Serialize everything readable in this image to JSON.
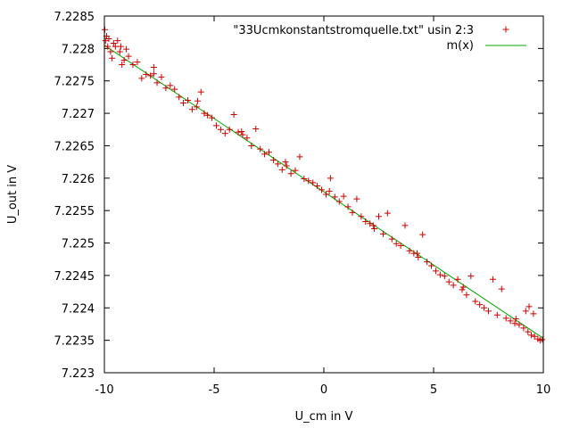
{
  "chart_data": {
    "type": "scatter",
    "xlabel": "U_cm in V",
    "ylabel": "U_out in V",
    "xlim": [
      -10,
      10
    ],
    "ylim": [
      7.223,
      7.2285
    ],
    "x_ticks": [
      -10,
      -5,
      0,
      5,
      10
    ],
    "x_tick_labels": [
      "-10",
      "-5",
      "0",
      "5",
      "10"
    ],
    "y_ticks": [
      7.223,
      7.2235,
      7.224,
      7.2245,
      7.225,
      7.2255,
      7.226,
      7.2265,
      7.227,
      7.2275,
      7.228,
      7.2285
    ],
    "y_tick_labels": [
      "7.223",
      "7.2235",
      "7.224",
      "7.2245",
      "7.225",
      "7.2255",
      "7.226",
      "7.2265",
      "7.227",
      "7.2275",
      "7.228",
      "7.2285"
    ],
    "grid": false,
    "legend_position": "top-right",
    "series": [
      {
        "name": "\"33Ucmkonstantstromquelle.txt\" usin 2:3",
        "kind": "points",
        "marker": "plus",
        "color": "#cc0000",
        "points": [
          [
            -9.98,
            7.22829
          ],
          [
            -9.95,
            7.22812
          ],
          [
            -9.9,
            7.22819
          ],
          [
            -9.85,
            7.22803
          ],
          [
            -9.8,
            7.22815
          ],
          [
            -9.72,
            7.22795
          ],
          [
            -9.65,
            7.22785
          ],
          [
            -9.58,
            7.22808
          ],
          [
            -9.5,
            7.22803
          ],
          [
            -9.4,
            7.22812
          ],
          [
            -9.3,
            7.22795
          ],
          [
            -9.2,
            7.22775
          ],
          [
            -9.1,
            7.22782
          ],
          [
            -9.0,
            7.22799
          ],
          [
            -8.9,
            7.22788
          ],
          [
            -8.7,
            7.22775
          ],
          [
            -8.5,
            7.22779
          ],
          [
            -8.3,
            7.22754
          ],
          [
            -8.1,
            7.2276
          ],
          [
            -7.9,
            7.22758
          ],
          [
            -7.75,
            7.22771
          ],
          [
            -7.6,
            7.22747
          ],
          [
            -7.4,
            7.22756
          ],
          [
            -7.2,
            7.22739
          ],
          [
            -7.0,
            7.22743
          ],
          [
            -6.8,
            7.22737
          ],
          [
            -6.6,
            7.22725
          ],
          [
            -6.4,
            7.22716
          ],
          [
            -6.2,
            7.2272
          ],
          [
            -6.0,
            7.22706
          ],
          [
            -5.8,
            7.2271
          ],
          [
            -5.6,
            7.22733
          ],
          [
            -5.45,
            7.227
          ],
          [
            -5.3,
            7.22697
          ],
          [
            -5.1,
            7.22693
          ],
          [
            -4.9,
            7.22681
          ],
          [
            -4.7,
            7.22675
          ],
          [
            -4.5,
            7.22669
          ],
          [
            -4.3,
            7.22675
          ],
          [
            -4.1,
            7.22698
          ],
          [
            -3.9,
            7.22671
          ],
          [
            -3.7,
            7.22667
          ],
          [
            -3.5,
            7.22662
          ],
          [
            -3.3,
            7.2265
          ],
          [
            -3.1,
            7.22676
          ],
          [
            -2.9,
            7.22645
          ],
          [
            -2.7,
            7.22637
          ],
          [
            -2.5,
            7.2264
          ],
          [
            -2.3,
            7.22628
          ],
          [
            -2.1,
            7.22622
          ],
          [
            -1.9,
            7.22613
          ],
          [
            -1.7,
            7.22619
          ],
          [
            -1.5,
            7.22607
          ],
          [
            -1.3,
            7.22612
          ],
          [
            -1.1,
            7.22633
          ],
          [
            -0.9,
            7.22599
          ],
          [
            -0.7,
            7.22596
          ],
          [
            -0.5,
            7.22593
          ],
          [
            -0.3,
            7.22588
          ],
          [
            -0.1,
            7.22582
          ],
          [
            0.1,
            7.22575
          ],
          [
            0.3,
            7.226
          ],
          [
            0.5,
            7.22571
          ],
          [
            0.7,
            7.22564
          ],
          [
            0.9,
            7.22572
          ],
          [
            1.1,
            7.22556
          ],
          [
            1.3,
            7.22547
          ],
          [
            1.5,
            7.22568
          ],
          [
            1.7,
            7.22541
          ],
          [
            1.9,
            7.22533
          ],
          [
            2.1,
            7.2253
          ],
          [
            2.3,
            7.22522
          ],
          [
            2.5,
            7.22541
          ],
          [
            2.7,
            7.22514
          ],
          [
            2.9,
            7.22546
          ],
          [
            3.1,
            7.22506
          ],
          [
            3.3,
            7.22499
          ],
          [
            3.5,
            7.22496
          ],
          [
            3.7,
            7.22527
          ],
          [
            3.9,
            7.22488
          ],
          [
            4.1,
            7.22484
          ],
          [
            4.3,
            7.22478
          ],
          [
            4.5,
            7.22513
          ],
          [
            4.7,
            7.22471
          ],
          [
            4.9,
            7.22465
          ],
          [
            5.1,
            7.22457
          ],
          [
            5.3,
            7.22451
          ],
          [
            5.5,
            7.22449
          ],
          [
            5.7,
            7.2244
          ],
          [
            5.9,
            7.22435
          ],
          [
            6.1,
            7.22444
          ],
          [
            6.3,
            7.22428
          ],
          [
            6.5,
            7.2242
          ],
          [
            6.7,
            7.22449
          ],
          [
            6.9,
            7.2241
          ],
          [
            7.1,
            7.22405
          ],
          [
            7.3,
            7.224
          ],
          [
            7.5,
            7.22395
          ],
          [
            7.7,
            7.22444
          ],
          [
            7.9,
            7.22389
          ],
          [
            8.1,
            7.22429
          ],
          [
            8.3,
            7.22384
          ],
          [
            8.5,
            7.2238
          ],
          [
            8.7,
            7.22376
          ],
          [
            8.9,
            7.22374
          ],
          [
            9.1,
            7.22369
          ],
          [
            9.3,
            7.22363
          ],
          [
            9.45,
            7.22358
          ],
          [
            9.6,
            7.22356
          ],
          [
            9.75,
            7.22352
          ],
          [
            9.85,
            7.2235
          ],
          [
            9.95,
            7.22351
          ],
          [
            9.2,
            7.22395
          ],
          [
            9.35,
            7.22402
          ],
          [
            9.55,
            7.22391
          ],
          [
            8.75,
            7.22383
          ],
          [
            6.35,
            7.22432
          ],
          [
            4.25,
            7.22484
          ],
          [
            2.25,
            7.22527
          ],
          [
            0.25,
            7.2258
          ],
          [
            -1.75,
            7.22625
          ],
          [
            -3.75,
            7.22672
          ],
          [
            -5.75,
            7.22719
          ],
          [
            -7.75,
            7.22761
          ],
          [
            -9.25,
            7.22803
          ]
        ]
      },
      {
        "name": "m(x)",
        "kind": "line",
        "color": "#00aa00",
        "points": [
          [
            -10,
            7.22805
          ],
          [
            10,
            7.22353
          ]
        ]
      }
    ]
  }
}
